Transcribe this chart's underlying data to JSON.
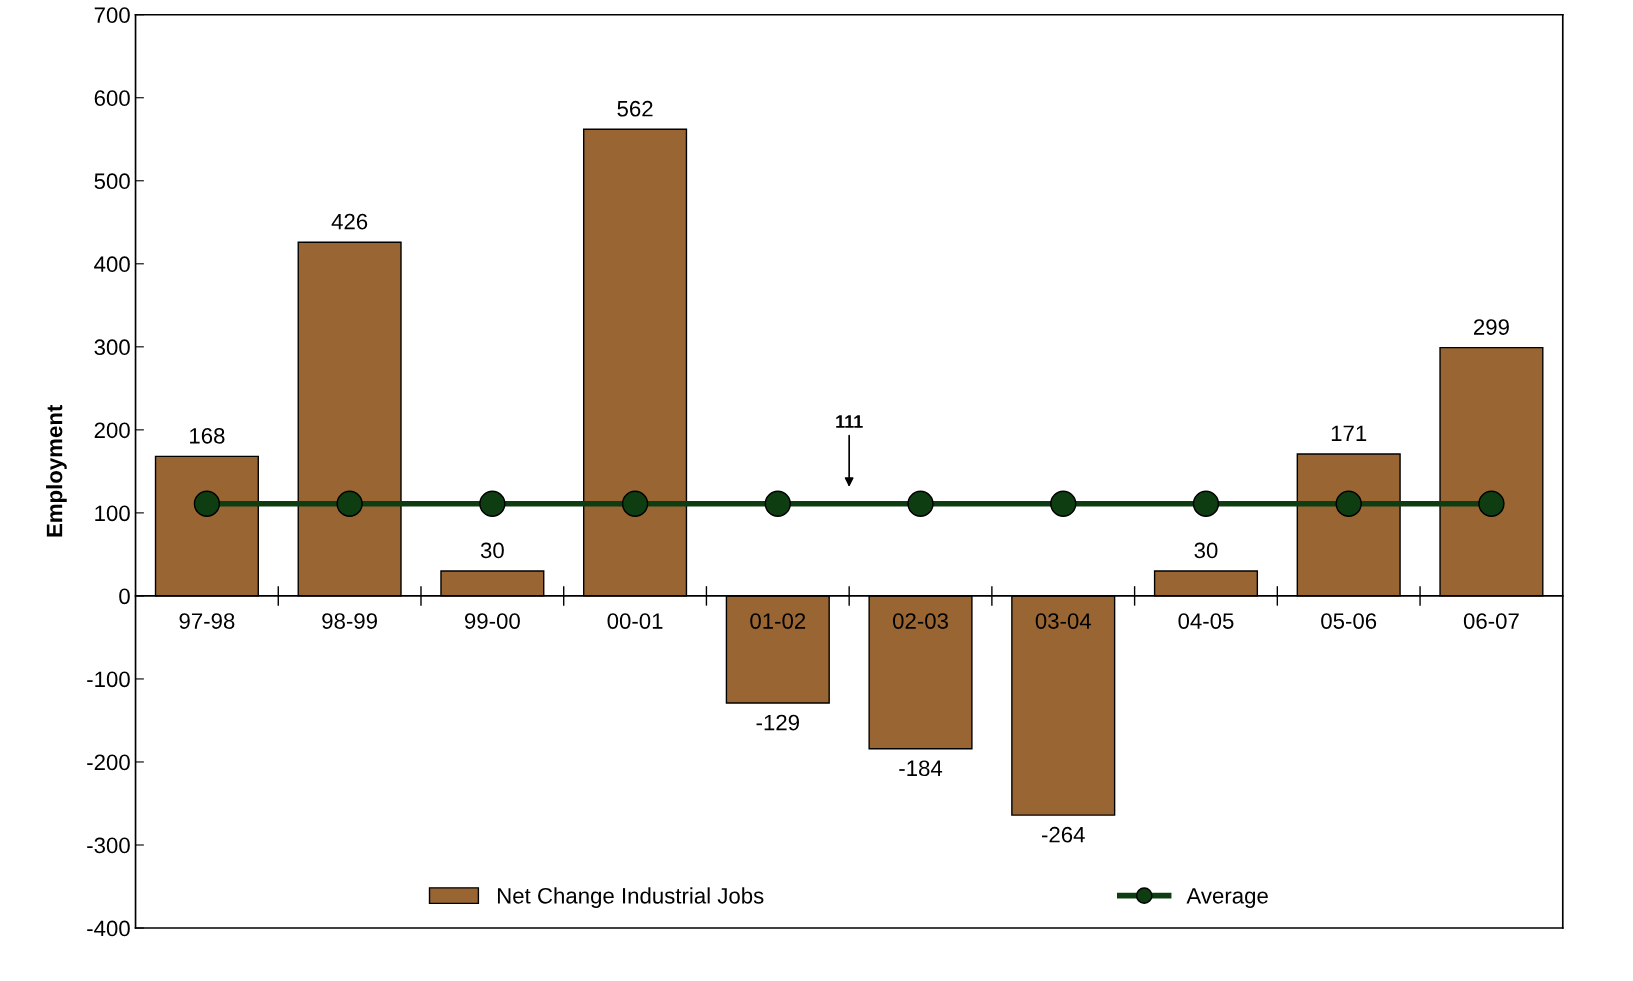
{
  "chart_data": {
    "type": "bar",
    "ylabel": "Employment",
    "categories": [
      "97-98",
      "98-99",
      "99-00",
      "00-01",
      "01-02",
      "02-03",
      "03-04",
      "04-05",
      "05-06",
      "06-07"
    ],
    "series": [
      {
        "name": "Net Change Industrial Jobs",
        "color": "#996633",
        "values": [
          168,
          426,
          30,
          562,
          -129,
          -184,
          -264,
          30,
          171,
          299
        ],
        "value_labels": [
          "168",
          "426",
          "30",
          "562",
          "-129",
          "-184",
          "-264",
          "30",
          "171",
          "299"
        ]
      },
      {
        "name": "Average",
        "type": "line",
        "color": "#0e3d12",
        "marker": "circle",
        "values": [
          111,
          111,
          111,
          111,
          111,
          111,
          111,
          111,
          111,
          111
        ]
      }
    ],
    "annotations": [
      "111"
    ],
    "ylim": [
      -400,
      700
    ],
    "yticks": [
      -400,
      -300,
      -200,
      -100,
      0,
      100,
      200,
      300,
      400,
      500,
      600,
      700
    ],
    "grid": false,
    "legend": "bottom"
  }
}
